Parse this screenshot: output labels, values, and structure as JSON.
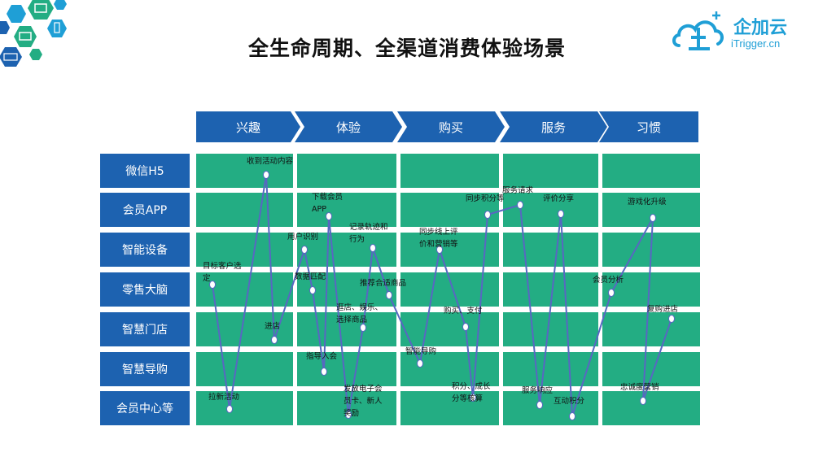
{
  "title": "全生命周期、全渠道消费体验场景",
  "logo": {
    "cn": "企加云",
    "en": "iTrigger.cn"
  },
  "stages": [
    "兴趣",
    "体验",
    "购买",
    "服务",
    "习惯"
  ],
  "channels": [
    "微信H5",
    "会员APP",
    "智能设备",
    "零售大脑",
    "智慧门店",
    "智慧导购",
    "会员中心等"
  ],
  "colors": {
    "stage_blue": "#1d62b0",
    "cell_green": "#23ad83",
    "line_blue": "#5867c2"
  },
  "journey": [
    {
      "lines": [
        "目标客户选",
        "定"
      ],
      "stage": 0,
      "channel": 3
    },
    {
      "lines": [
        "拉新活动"
      ],
      "stage": 0,
      "channel": 6
    },
    {
      "lines": [
        "收到活动内容"
      ],
      "stage": 0,
      "channel": 0
    },
    {
      "lines": [
        "进店"
      ],
      "stage": 0,
      "channel": 4
    },
    {
      "lines": [
        "用户识别"
      ],
      "stage": 1,
      "channel": 2
    },
    {
      "lines": [
        "数据匹配"
      ],
      "stage": 1,
      "channel": 3
    },
    {
      "lines": [
        "指导入会"
      ],
      "stage": 1,
      "channel": 5
    },
    {
      "lines": [
        "下载会员",
        "APP"
      ],
      "stage": 1,
      "channel": 1
    },
    {
      "lines": [
        "发放电子会",
        "员卡、新人",
        "奖励"
      ],
      "stage": 1,
      "channel": 6
    },
    {
      "lines": [
        "逛店、娱乐、",
        "选择商品"
      ],
      "stage": 1,
      "channel": 4
    },
    {
      "lines": [
        "记录轨迹和",
        "行为"
      ],
      "stage": 1,
      "channel": 2
    },
    {
      "lines": [
        "推荐合适商品"
      ],
      "stage": 1,
      "channel": 3
    },
    {
      "lines": [
        "智能导购"
      ],
      "stage": 2,
      "channel": 5
    },
    {
      "lines": [
        "同步线上评",
        "价和营销等"
      ],
      "stage": 2,
      "channel": 2
    },
    {
      "lines": [
        "购买、支付"
      ],
      "stage": 2,
      "channel": 4
    },
    {
      "lines": [
        "积分、成长",
        "分等核算"
      ],
      "stage": 2,
      "channel": 6
    },
    {
      "lines": [
        "同步积分等"
      ],
      "stage": 2,
      "channel": 1
    },
    {
      "lines": [
        "服务请求"
      ],
      "stage": 3,
      "channel": 1
    },
    {
      "lines": [
        "服务响应"
      ],
      "stage": 3,
      "channel": 6
    },
    {
      "lines": [
        "评价分享"
      ],
      "stage": 3,
      "channel": 1
    },
    {
      "lines": [
        "互动积分"
      ],
      "stage": 3,
      "channel": 6
    },
    {
      "lines": [
        "会员分析"
      ],
      "stage": 4,
      "channel": 3
    },
    {
      "lines": [
        "游戏化升级"
      ],
      "stage": 4,
      "channel": 1
    },
    {
      "lines": [
        "忠诚度营销"
      ],
      "stage": 4,
      "channel": 6
    },
    {
      "lines": [
        "复购进店"
      ],
      "stage": 4,
      "channel": 4
    }
  ]
}
